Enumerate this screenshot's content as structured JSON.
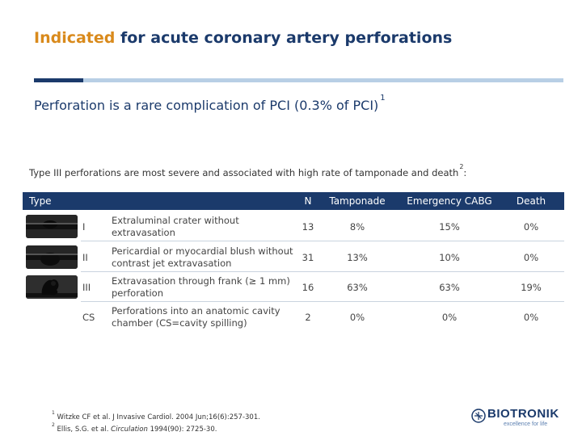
{
  "header": {
    "title_highlight": "Indicated",
    "title_rest": " for acute coronary artery perforations"
  },
  "subtitle": {
    "text": "Perforation is a rare complication of PCI (0.3% of PCI)",
    "ref": "1"
  },
  "note": {
    "text": "Type III perforations are most severe and associated with high rate of tamponade and death",
    "ref": "2",
    "suffix": ":"
  },
  "table": {
    "columns": {
      "type": "Type",
      "n": "N",
      "tamponade": "Tamponade",
      "cabg": "Emergency CABG",
      "death": "Death"
    },
    "rows": [
      {
        "grade": "I",
        "description": "Extraluminal crater without extravasation",
        "n": "13",
        "tamponade": "8%",
        "cabg": "15%",
        "death": "0%"
      },
      {
        "grade": "II",
        "description": "Pericardial or myocardial blush without contrast jet extravasation",
        "n": "31",
        "tamponade": "13%",
        "cabg": "10%",
        "death": "0%"
      },
      {
        "grade": "III",
        "description": "Extravasation through frank (≥ 1 mm) perforation",
        "n": "16",
        "tamponade": "63%",
        "cabg": "63%",
        "death": "19%"
      },
      {
        "grade": "CS",
        "description": "Perforations into an anatomic cavity chamber (CS=cavity spilling)",
        "n": "2",
        "tamponade": "0%",
        "cabg": "0%",
        "death": "0%"
      }
    ]
  },
  "footnotes": [
    {
      "num": "1",
      "text": "Witzke CF et al. J Invasive Cardiol. 2004 Jun;16(6):257-301."
    },
    {
      "num": "2",
      "pre": "Ellis, S.G. et al. ",
      "journal": "Circulation",
      "post": " 1994(90): 2725-30."
    }
  ],
  "logo": {
    "word": "BIOTRONIK",
    "tagline": "excellence for life"
  },
  "colors": {
    "brand_blue": "#1b3a6b",
    "highlight_orange": "#d98a1c",
    "rule_light": "#b8cfe5"
  }
}
